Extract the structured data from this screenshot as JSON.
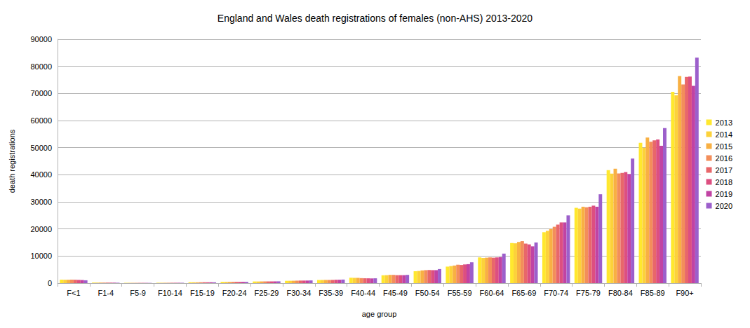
{
  "chart_data": {
    "type": "bar",
    "title": "England and Wales death registrations of females (non-AHS) 2013-2020",
    "x_label": "age group",
    "y_label": "death registrations",
    "categories": [
      "F<1",
      "F1-4",
      "F5-9",
      "F10-14",
      "F15-19",
      "F20-24",
      "F25-29",
      "F30-34",
      "F35-39",
      "F40-44",
      "F45-49",
      "F50-54",
      "F55-59",
      "F60-64",
      "F65-69",
      "F70-74",
      "F75-79",
      "F80-84",
      "F85-89",
      "F90+"
    ],
    "series": [
      {
        "name": "2013",
        "color": "#ffe82e",
        "values": [
          1300,
          220,
          120,
          150,
          330,
          480,
          620,
          860,
          1160,
          2000,
          2900,
          4400,
          6100,
          9500,
          14800,
          18800,
          27800,
          41700,
          51800,
          70600
        ]
      },
      {
        "name": "2014",
        "color": "#fcd23a",
        "values": [
          1250,
          210,
          120,
          140,
          320,
          470,
          610,
          870,
          1170,
          1950,
          2950,
          4500,
          6300,
          9300,
          14700,
          19300,
          27500,
          40400,
          50000,
          69300
        ]
      },
      {
        "name": "2015",
        "color": "#f8b043",
        "values": [
          1250,
          210,
          110,
          140,
          310,
          470,
          630,
          890,
          1190,
          1950,
          3050,
          4700,
          6500,
          9400,
          15200,
          20000,
          28200,
          42200,
          53700,
          76400
        ]
      },
      {
        "name": "2016",
        "color": "#f38e5a",
        "values": [
          1300,
          200,
          110,
          140,
          330,
          490,
          640,
          920,
          1180,
          1850,
          3050,
          4800,
          6800,
          9500,
          15500,
          20800,
          28000,
          40500,
          52200,
          73300
        ]
      },
      {
        "name": "2017",
        "color": "#e8676a",
        "values": [
          1250,
          200,
          110,
          140,
          340,
          490,
          640,
          950,
          1200,
          1800,
          2950,
          4850,
          6700,
          9400,
          14600,
          21600,
          28200,
          40700,
          52700,
          76100
        ]
      },
      {
        "name": "2018",
        "color": "#dd4f80",
        "values": [
          1200,
          190,
          110,
          140,
          320,
          470,
          640,
          950,
          1250,
          1780,
          2950,
          4800,
          6900,
          9500,
          14300,
          22400,
          28600,
          41000,
          53000,
          76200
        ]
      },
      {
        "name": "2019",
        "color": "#c143a3",
        "values": [
          1150,
          180,
          100,
          140,
          330,
          480,
          650,
          960,
          1260,
          1740,
          2950,
          4800,
          7000,
          9600,
          13600,
          22400,
          28200,
          40300,
          50700,
          72800
        ]
      },
      {
        "name": "2020",
        "color": "#9c5fcb",
        "values": [
          1050,
          150,
          90,
          130,
          310,
          470,
          670,
          1010,
          1320,
          1790,
          3050,
          5200,
          7700,
          10900,
          15000,
          25000,
          32800,
          46000,
          57200,
          83200
        ]
      }
    ],
    "ylim": [
      0,
      90000
    ],
    "yticks": [
      0,
      10000,
      20000,
      30000,
      40000,
      50000,
      60000,
      70000,
      80000,
      90000
    ],
    "grid": true,
    "legend": "right"
  }
}
